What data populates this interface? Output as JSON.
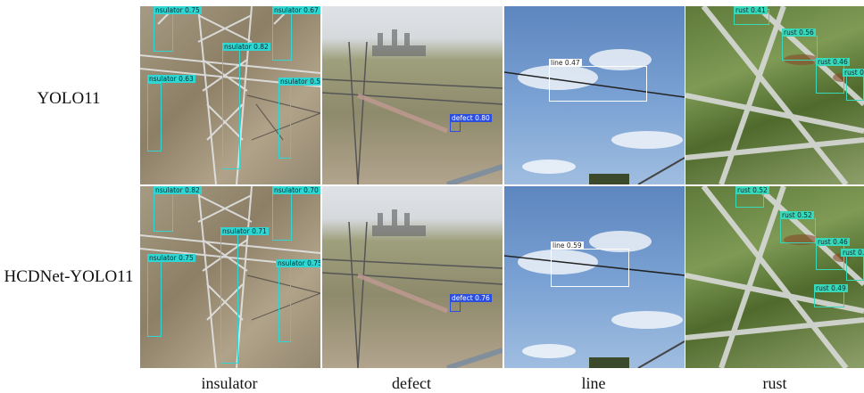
{
  "row_labels": [
    "YOLO11",
    "HCDNet-YOLO11"
  ],
  "col_labels": [
    "insulator",
    "defect",
    "line",
    "rust"
  ],
  "colors": {
    "insulator": "#2fd6d2",
    "defect": "#2b4ee0",
    "line": "#ffffff",
    "rust": "#38d9b8"
  },
  "detections": {
    "yolo11": {
      "insulator": [
        {
          "label": "nsulator 0.75"
        },
        {
          "label": "nsulator 0.67"
        },
        {
          "label": "nsulator 0.82"
        },
        {
          "label": "nsulator 0.63"
        },
        {
          "label": "nsulator 0.56"
        }
      ],
      "defect": [
        {
          "label": "defect 0.80"
        }
      ],
      "line": [
        {
          "label": "line 0.47"
        }
      ],
      "rust": [
        {
          "label": "rust 0.41"
        },
        {
          "label": "rust 0.56"
        },
        {
          "label": "rust 0.46"
        },
        {
          "label": "rust 0.5"
        }
      ]
    },
    "hcdnet": {
      "insulator": [
        {
          "label": "nsulator 0.82"
        },
        {
          "label": "nsulator 0.70"
        },
        {
          "label": "nsulator 0.71"
        },
        {
          "label": "nsulator 0.75"
        },
        {
          "label": "nsulator 0.75"
        }
      ],
      "defect": [
        {
          "label": "defect 0.76"
        }
      ],
      "line": [
        {
          "label": "line 0.59"
        }
      ],
      "rust": [
        {
          "label": "rust 0.52"
        },
        {
          "label": "rust 0.52"
        },
        {
          "label": "rust 0.46"
        },
        {
          "label": "rust 0.49"
        },
        {
          "label": "rust 0.46"
        }
      ]
    }
  }
}
